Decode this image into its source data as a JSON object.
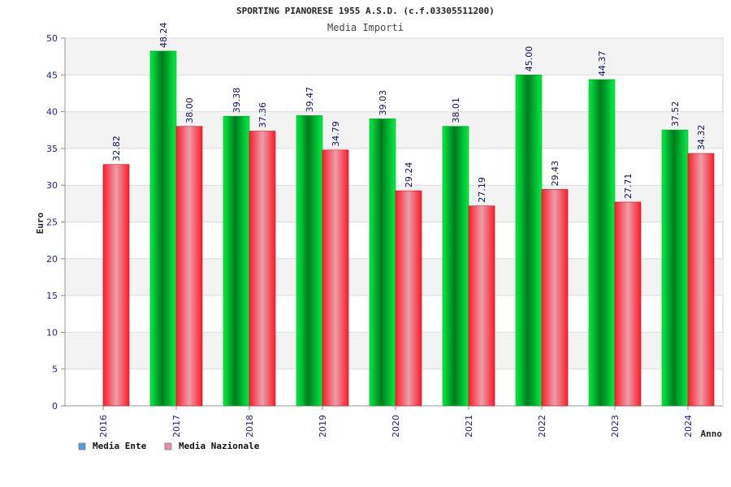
{
  "chart_data": {
    "type": "bar",
    "title": "SPORTING PIANORESE 1955 A.S.D. (c.f.03305511200)",
    "subtitle": "Media Importi",
    "xlabel": "Anno",
    "ylabel": "Euro",
    "ylim": [
      0,
      50
    ],
    "yticks": [
      0,
      5,
      10,
      15,
      20,
      25,
      30,
      35,
      40,
      45,
      50
    ],
    "grid": true,
    "legend_position": "bottom-left",
    "categories": [
      "2016",
      "2017",
      "2018",
      "2019",
      "2020",
      "2021",
      "2022",
      "2023",
      "2024"
    ],
    "series": [
      {
        "name": "Media Ente",
        "color": "#00cc33",
        "legend_color": "#5b9bd5",
        "values": [
          null,
          48.24,
          39.38,
          39.47,
          39.03,
          38.01,
          45.0,
          44.37,
          37.52
        ],
        "labels": [
          "",
          "48.24",
          "39.38",
          "39.47",
          "39.03",
          "38.01",
          "45.00",
          "44.37",
          "37.52"
        ]
      },
      {
        "name": "Media Nazionale",
        "color": "#ff2030",
        "legend_color": "#e090b0",
        "values": [
          32.82,
          38.0,
          37.36,
          34.79,
          29.24,
          27.19,
          29.43,
          27.71,
          34.32
        ],
        "labels": [
          "32.82",
          "38.00",
          "37.36",
          "34.79",
          "29.24",
          "27.19",
          "29.43",
          "27.71",
          "34.32"
        ]
      }
    ]
  }
}
